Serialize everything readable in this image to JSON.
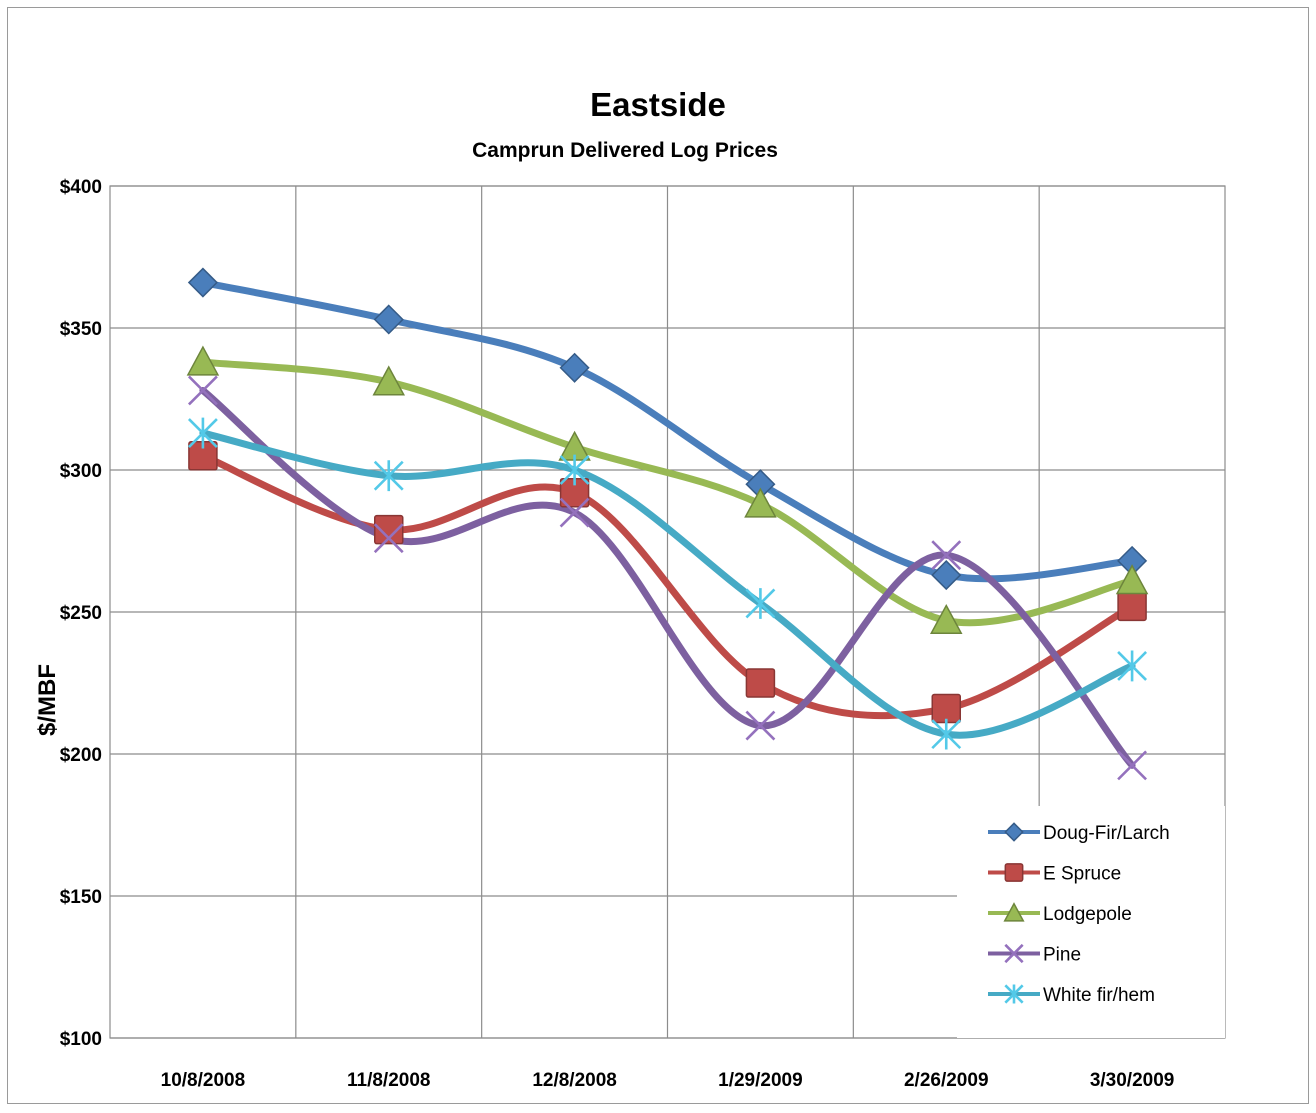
{
  "chart_data": {
    "type": "line",
    "title": "Eastside",
    "subtitle": "Camprun Delivered Log Prices",
    "xlabel": "",
    "ylabel": "$/MBF",
    "categories": [
      "10/8/2008",
      "11/8/2008",
      "12/8/2008",
      "1/29/2009",
      "2/26/2009",
      "3/30/2009"
    ],
    "ylim": [
      100,
      400
    ],
    "yticks": [
      100,
      150,
      200,
      250,
      300,
      350,
      400
    ],
    "ytick_labels": [
      "$100",
      "$150",
      "$200",
      "$250",
      "$300",
      "$350",
      "$400"
    ],
    "grid": true,
    "smooth": true,
    "legend_position": "bottom-right, inside plot",
    "series": [
      {
        "name": "Doug-Fir/Larch",
        "color": "#4a7ebb",
        "marker": "diamond",
        "values": [
          366,
          353,
          336,
          295,
          263,
          268
        ]
      },
      {
        "name": "E Spruce",
        "color": "#be4b48",
        "marker": "square",
        "values": [
          305,
          279,
          292,
          225,
          216,
          252
        ]
      },
      {
        "name": "Lodgepole",
        "color": "#98b954",
        "marker": "triangle",
        "values": [
          338,
          331,
          308,
          288,
          247,
          261
        ]
      },
      {
        "name": "Pine",
        "color": "#7d60a0",
        "marker": "x",
        "values": [
          328,
          276,
          285,
          210,
          270,
          196
        ]
      },
      {
        "name": "White fir/hem",
        "color": "#46aac5",
        "marker": "star",
        "values": [
          313,
          298,
          300,
          253,
          207,
          231
        ]
      }
    ]
  }
}
